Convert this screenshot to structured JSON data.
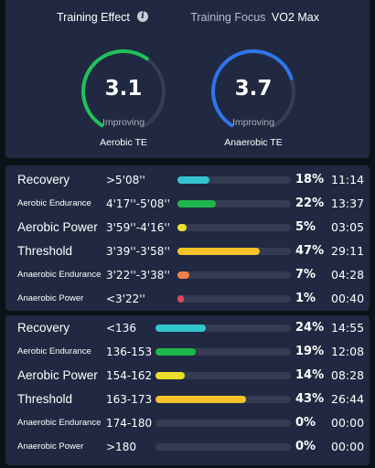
{
  "training_effect": {
    "title": "Training Effect",
    "focus_label": "Training Focus",
    "focus_value": "VO2 Max",
    "aerobic": {
      "value": "3.1",
      "status": "Improving",
      "label": "Aerobic TE",
      "level": 0.62,
      "color": "#1fc25a"
    },
    "anaerobic": {
      "value": "3.7",
      "status": "Improving",
      "label": "Anaerobic TE",
      "level": 0.74,
      "color": "#2f74ea"
    }
  },
  "pace_zones": [
    {
      "name": "Recovery",
      "range": ">5'08''",
      "pct": "18%",
      "time": "11:14",
      "fraction": 0.18,
      "color": "#33c6cf",
      "size": "big"
    },
    {
      "name": "Aerobic Endurance",
      "range": "4'17''-5'08''",
      "pct": "22%",
      "time": "13:37",
      "fraction": 0.22,
      "color": "#1fb54c",
      "size": "small"
    },
    {
      "name": "Aerobic Power",
      "range": "3'59''-4'16''",
      "pct": "5%",
      "time": "03:05",
      "fraction": 0.05,
      "color": "#eadf2b",
      "size": "big"
    },
    {
      "name": "Threshold",
      "range": "3'39''-3'58''",
      "pct": "47%",
      "time": "29:11",
      "fraction": 0.47,
      "color": "#f6c228",
      "size": "big"
    },
    {
      "name": "Anaerobic Endurance",
      "range": "3'22''-3'38''",
      "pct": "7%",
      "time": "04:28",
      "fraction": 0.07,
      "color": "#f5804a",
      "size": "small"
    },
    {
      "name": "Anaerobic Power",
      "range": "<3'22''",
      "pct": "1%",
      "time": "00:40",
      "fraction": 0.01,
      "color": "#e4455a",
      "size": "small"
    }
  ],
  "hr_zones": [
    {
      "name": "Recovery",
      "range": "<136",
      "pct": "24%",
      "time": "14:55",
      "fraction": 0.24,
      "color": "#33c6cf",
      "size": "big"
    },
    {
      "name": "Aerobic Endurance",
      "range": "136-153",
      "pct": "19%",
      "time": "12:08",
      "fraction": 0.19,
      "color": "#1fb54c",
      "size": "small"
    },
    {
      "name": "Aerobic Power",
      "range": "154-162",
      "pct": "14%",
      "time": "08:28",
      "fraction": 0.14,
      "color": "#eadf2b",
      "size": "big"
    },
    {
      "name": "Threshold",
      "range": "163-173",
      "pct": "43%",
      "time": "26:44",
      "fraction": 0.43,
      "color": "#f6c228",
      "size": "big"
    },
    {
      "name": "Anaerobic Endurance",
      "range": "174-180",
      "pct": "0%",
      "time": "00:00",
      "fraction": 0.0,
      "color": "#f5804a",
      "size": "small"
    },
    {
      "name": "Anaerobic Power",
      "range": ">180",
      "pct": "0%",
      "time": "00:00",
      "fraction": 0.0,
      "color": "#e4455a",
      "size": "small"
    }
  ]
}
